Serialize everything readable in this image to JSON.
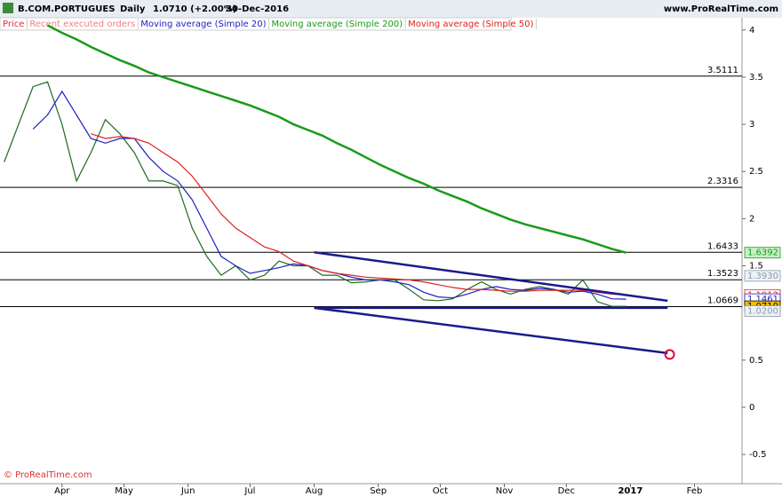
{
  "chart_data": {
    "type": "line",
    "header": {
      "symbol": "B.COM.PORTUGUES",
      "period": "Daily",
      "quote": "1.0710 (+2.00%)",
      "date": "30-Dec-2016",
      "site": "www.ProRealTime.com"
    },
    "footer": "© ProRealTime.com",
    "x": [
      "2016-03-04",
      "2016-03-11",
      "2016-03-18",
      "2016-03-25",
      "2016-04-01",
      "2016-04-08",
      "2016-04-15",
      "2016-04-22",
      "2016-04-29",
      "2016-05-06",
      "2016-05-13",
      "2016-05-20",
      "2016-05-27",
      "2016-06-03",
      "2016-06-10",
      "2016-06-17",
      "2016-06-24",
      "2016-07-01",
      "2016-07-08",
      "2016-07-15",
      "2016-07-22",
      "2016-07-29",
      "2016-08-05",
      "2016-08-12",
      "2016-08-19",
      "2016-08-26",
      "2016-09-02",
      "2016-09-09",
      "2016-09-16",
      "2016-09-23",
      "2016-09-30",
      "2016-10-07",
      "2016-10-14",
      "2016-10-21",
      "2016-10-28",
      "2016-11-04",
      "2016-11-11",
      "2016-11-18",
      "2016-11-25",
      "2016-12-02",
      "2016-12-09",
      "2016-12-16",
      "2016-12-23",
      "2016-12-30"
    ],
    "series": [
      {
        "name": "Price",
        "color": "#1f6b1f",
        "legend_color": "#e03030",
        "values": [
          2.6,
          3.0,
          3.4,
          3.45,
          3.0,
          2.4,
          2.7,
          3.05,
          2.9,
          2.7,
          2.4,
          2.4,
          2.35,
          1.9,
          1.6,
          1.4,
          1.5,
          1.35,
          1.4,
          1.55,
          1.5,
          1.5,
          1.4,
          1.4,
          1.32,
          1.33,
          1.35,
          1.35,
          1.25,
          1.14,
          1.13,
          1.15,
          1.25,
          1.33,
          1.25,
          1.2,
          1.25,
          1.28,
          1.25,
          1.2,
          1.35,
          1.12,
          1.07,
          1.071
        ]
      },
      {
        "name": "Moving average (Simple 20)",
        "color": "#2020c0",
        "values": [
          null,
          null,
          2.95,
          3.1,
          3.35,
          3.1,
          2.85,
          2.8,
          2.85,
          2.85,
          2.65,
          2.5,
          2.4,
          2.2,
          1.9,
          1.6,
          1.5,
          1.42,
          1.45,
          1.48,
          1.52,
          1.5,
          1.45,
          1.42,
          1.38,
          1.35,
          1.35,
          1.33,
          1.3,
          1.22,
          1.17,
          1.16,
          1.2,
          1.25,
          1.28,
          1.25,
          1.24,
          1.26,
          1.25,
          1.22,
          1.23,
          1.2,
          1.15,
          1.146
        ]
      },
      {
        "name": "Moving average (Simple 200)",
        "color": "#1a9a1a",
        "values": [
          null,
          null,
          null,
          4.05,
          3.97,
          3.9,
          3.82,
          3.75,
          3.68,
          3.62,
          3.55,
          3.5,
          3.45,
          3.4,
          3.35,
          3.3,
          3.25,
          3.2,
          3.14,
          3.08,
          3.0,
          2.94,
          2.88,
          2.8,
          2.73,
          2.65,
          2.57,
          2.5,
          2.43,
          2.37,
          2.3,
          2.24,
          2.18,
          2.11,
          2.05,
          1.99,
          1.94,
          1.9,
          1.86,
          1.82,
          1.78,
          1.73,
          1.68,
          1.6392
        ]
      },
      {
        "name": "Moving average (Simple 50)",
        "color": "#e02020",
        "values": [
          null,
          null,
          null,
          null,
          null,
          null,
          2.9,
          2.85,
          2.87,
          2.85,
          2.8,
          2.7,
          2.6,
          2.45,
          2.25,
          2.05,
          1.9,
          1.8,
          1.7,
          1.65,
          1.55,
          1.5,
          1.45,
          1.42,
          1.4,
          1.38,
          1.37,
          1.36,
          1.35,
          1.33,
          1.3,
          1.27,
          1.25,
          1.25,
          1.24,
          1.23,
          1.23,
          1.24,
          1.24,
          1.24,
          1.24,
          1.22,
          1.2,
          1.191
        ]
      }
    ],
    "legend_extra": {
      "text": "Recent executed orders",
      "color": "#f08080"
    },
    "xlim": [
      "2016-03-02",
      "2017-02-24"
    ],
    "xticks": [
      {
        "value": "2016-04-01",
        "label": "Apr"
      },
      {
        "value": "2016-05-01",
        "label": "May"
      },
      {
        "value": "2016-06-01",
        "label": "Jun"
      },
      {
        "value": "2016-07-01",
        "label": "Jul"
      },
      {
        "value": "2016-08-01",
        "label": "Aug"
      },
      {
        "value": "2016-09-01",
        "label": "Sep"
      },
      {
        "value": "2016-10-01",
        "label": "Oct"
      },
      {
        "value": "2016-11-01",
        "label": "Nov"
      },
      {
        "value": "2016-12-01",
        "label": "Dec"
      },
      {
        "value": "2017-01-01",
        "label": "2017"
      },
      {
        "value": "2017-02-01",
        "label": "Feb"
      }
    ],
    "ylim": [
      -0.81,
      4.13
    ],
    "yticks": [
      4,
      3.5,
      3,
      2.5,
      2,
      1.5,
      0.5,
      0,
      -0.5
    ],
    "levels": [
      3.5111,
      2.3316,
      1.6433,
      1.3523,
      1.0669
    ],
    "trendlines": [
      {
        "x": [
          "2016-08-01",
          "2017-01-19"
        ],
        "values": [
          1.6433,
          1.13
        ]
      },
      {
        "x": [
          "2016-08-01",
          "2017-01-19"
        ],
        "values": [
          1.054,
          1.054
        ]
      },
      {
        "x": [
          "2016-08-01",
          "2017-01-19"
        ],
        "values": [
          1.054,
          0.574
        ]
      }
    ],
    "trendline_color": "#1a1a8c",
    "alert": {
      "x": "2017-01-20",
      "value": 0.56,
      "color": "#e0003c"
    },
    "price_tags": [
      {
        "value": 1.6392,
        "color": "#1a9a1a",
        "bg": "#c8f0c8"
      },
      {
        "value": 1.393,
        "label": "1.3930",
        "color": "#8899aa",
        "bg": "#eef2f6"
      },
      {
        "value": 1.1912,
        "color": "#e02020",
        "bg": "#ffffff"
      },
      {
        "value": 1.1461,
        "color": "#2020c0",
        "bg": "#ffffff"
      },
      {
        "value": 1.071,
        "label": "1.0710",
        "color": "#000000",
        "bg": "#f0c000"
      },
      {
        "value": 1.02,
        "label": "1.0200",
        "color": "#8899aa",
        "bg": "#eef2f6"
      }
    ]
  }
}
